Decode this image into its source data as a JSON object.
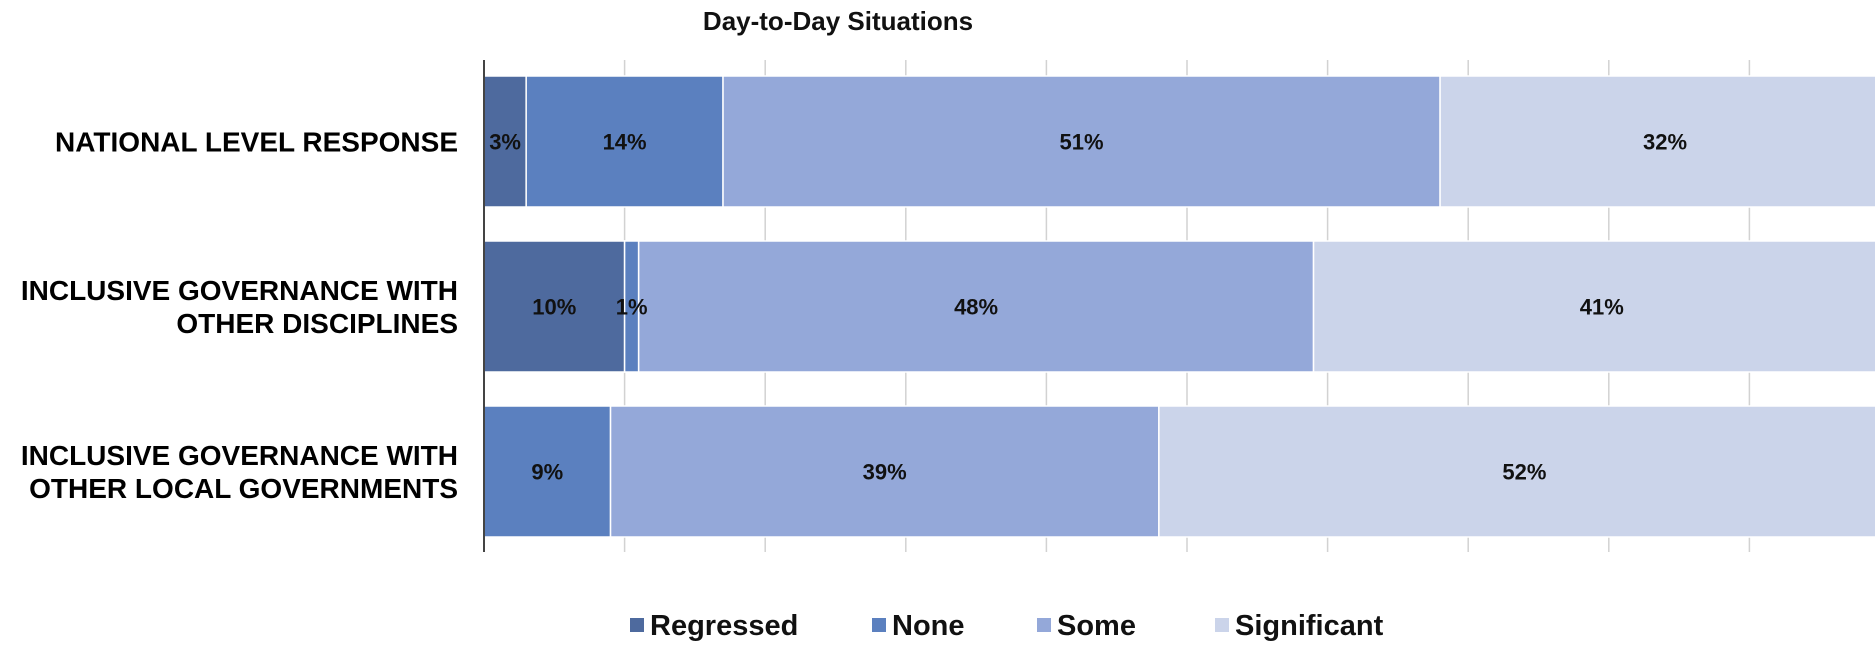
{
  "chart_data": {
    "type": "bar",
    "orientation": "horizontal",
    "stacked": true,
    "title": "Day-to-Day Situations",
    "categories": [
      [
        "NATIONAL LEVEL RESPONSE"
      ],
      [
        "INCLUSIVE GOVERNANCE WITH",
        "OTHER DISCIPLINES"
      ],
      [
        "INCLUSIVE GOVERNANCE WITH",
        "OTHER LOCAL GOVERNMENTS"
      ]
    ],
    "series": [
      {
        "name": "Regressed",
        "color": "#4E6A9E",
        "values": [
          3,
          10,
          0
        ],
        "labels": [
          "3%",
          "10%",
          ""
        ]
      },
      {
        "name": "None",
        "color": "#5B80BF",
        "values": [
          14,
          1,
          9
        ],
        "labels": [
          "14%",
          "1%",
          "9%"
        ]
      },
      {
        "name": "Some",
        "color": "#94A8D9",
        "values": [
          51,
          48,
          39
        ],
        "labels": [
          "51%",
          "48%",
          "39%"
        ]
      },
      {
        "name": "Significant",
        "color": "#CBD4EA",
        "values": [
          32,
          41,
          52
        ],
        "labels": [
          "32%",
          "41%",
          "52%"
        ]
      }
    ],
    "xlim": [
      0,
      100
    ],
    "grid": true,
    "legend_position": "bottom"
  }
}
